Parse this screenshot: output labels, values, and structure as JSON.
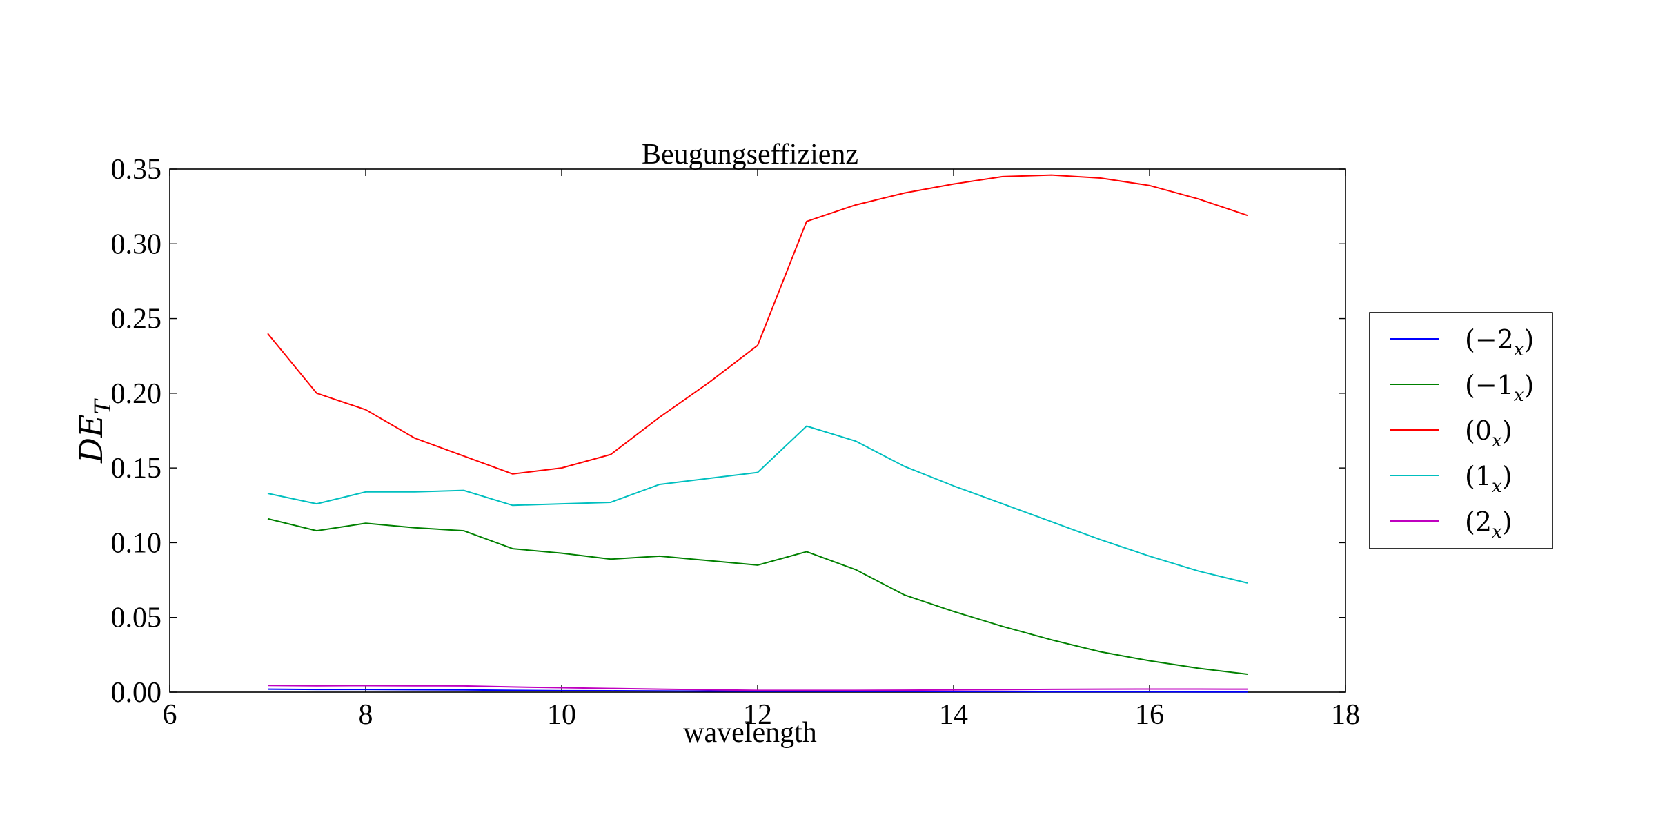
{
  "chart_data": {
    "type": "line",
    "title": "Beugungseffizienz",
    "xlabel": "wavelength",
    "ylabel": "DE_T",
    "ylabel_display": {
      "main": "DE",
      "sub": "T"
    },
    "xlim": [
      6,
      18
    ],
    "ylim": [
      0.0,
      0.35
    ],
    "x_ticks": [
      6,
      8,
      10,
      12,
      14,
      16,
      18
    ],
    "x_tick_labels": [
      "6",
      "8",
      "10",
      "12",
      "14",
      "16",
      "18"
    ],
    "y_ticks": [
      0.0,
      0.05,
      0.1,
      0.15,
      0.2,
      0.25,
      0.3,
      0.35
    ],
    "y_tick_labels": [
      "0.00",
      "0.05",
      "0.10",
      "0.15",
      "0.20",
      "0.25",
      "0.30",
      "0.35"
    ],
    "grid": false,
    "legend_position": "outside-right",
    "x": [
      7.0,
      7.5,
      8.0,
      8.5,
      9.0,
      9.5,
      10.0,
      10.5,
      11.0,
      11.5,
      12.0,
      12.5,
      13.0,
      13.5,
      14.0,
      14.5,
      15.0,
      15.5,
      16.0,
      16.5,
      17.0
    ],
    "series": [
      {
        "name": "(−2_x)",
        "label_main": "(−2",
        "label_sub": "x",
        "label_close": ")",
        "color": "#0000ff",
        "values": [
          0.002,
          0.0018,
          0.0018,
          0.0016,
          0.0015,
          0.0012,
          0.001,
          0.0009,
          0.0008,
          0.0007,
          0.0006,
          0.0006,
          0.0005,
          0.0005,
          0.0004,
          0.0004,
          0.0003,
          0.0003,
          0.0003,
          0.0002,
          0.0002
        ]
      },
      {
        "name": "(−1_x)",
        "label_main": "(−1",
        "label_sub": "x",
        "label_close": ")",
        "color": "#008000",
        "values": [
          0.116,
          0.108,
          0.113,
          0.11,
          0.108,
          0.096,
          0.093,
          0.089,
          0.091,
          0.088,
          0.085,
          0.094,
          0.082,
          0.065,
          0.054,
          0.044,
          0.035,
          0.027,
          0.021,
          0.016,
          0.012
        ]
      },
      {
        "name": "(0_x)",
        "label_main": "(0",
        "label_sub": "x",
        "label_close": ")",
        "color": "#ff0000",
        "values": [
          0.24,
          0.2,
          0.189,
          0.17,
          0.158,
          0.146,
          0.15,
          0.159,
          0.184,
          0.207,
          0.232,
          0.315,
          0.326,
          0.334,
          0.34,
          0.345,
          0.346,
          0.344,
          0.339,
          0.33,
          0.319
        ]
      },
      {
        "name": "(1_x)",
        "label_main": "(1",
        "label_sub": "x",
        "label_close": ")",
        "color": "#00bfbf",
        "values": [
          0.133,
          0.126,
          0.134,
          0.134,
          0.135,
          0.125,
          0.126,
          0.127,
          0.139,
          0.143,
          0.147,
          0.178,
          0.168,
          0.151,
          0.138,
          0.126,
          0.114,
          0.102,
          0.091,
          0.081,
          0.073
        ]
      },
      {
        "name": "(2_x)",
        "label_main": "(2",
        "label_sub": "x",
        "label_close": ")",
        "color": "#bf00bf",
        "values": [
          0.0045,
          0.0043,
          0.0044,
          0.0043,
          0.0042,
          0.0035,
          0.003,
          0.0025,
          0.002,
          0.0016,
          0.0012,
          0.0012,
          0.0012,
          0.0013,
          0.0015,
          0.0017,
          0.0019,
          0.002,
          0.0021,
          0.0021,
          0.002
        ]
      }
    ]
  }
}
